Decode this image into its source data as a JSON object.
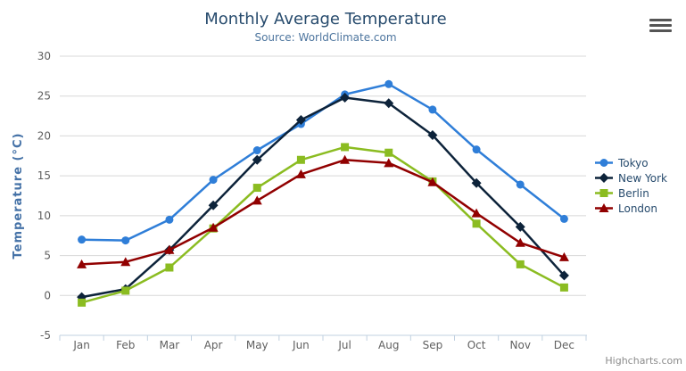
{
  "chart_data": {
    "type": "line",
    "title": "Monthly Average Temperature",
    "subtitle": "Source: WorldClimate.com",
    "categories": [
      "Jan",
      "Feb",
      "Mar",
      "Apr",
      "May",
      "Jun",
      "Jul",
      "Aug",
      "Sep",
      "Oct",
      "Nov",
      "Dec"
    ],
    "series": [
      {
        "name": "Tokyo",
        "color": "#2f7ed8",
        "marker": "circle",
        "values": [
          7.0,
          6.9,
          9.5,
          14.5,
          18.2,
          21.5,
          25.2,
          26.5,
          23.3,
          18.3,
          13.9,
          9.6
        ]
      },
      {
        "name": "New York",
        "color": "#0d233a",
        "marker": "diamond",
        "values": [
          -0.2,
          0.8,
          5.7,
          11.3,
          17.0,
          22.0,
          24.8,
          24.1,
          20.1,
          14.1,
          8.6,
          2.5
        ]
      },
      {
        "name": "Berlin",
        "color": "#8bbc21",
        "marker": "square",
        "values": [
          -0.9,
          0.6,
          3.5,
          8.4,
          13.5,
          17.0,
          18.6,
          17.9,
          14.3,
          9.0,
          3.9,
          1.0
        ]
      },
      {
        "name": "London",
        "color": "#910000",
        "marker": "triangle",
        "values": [
          3.9,
          4.2,
          5.7,
          8.5,
          11.9,
          15.2,
          17.0,
          16.6,
          14.2,
          10.3,
          6.6,
          4.8
        ]
      }
    ],
    "xlabel": "",
    "ylabel": "Temperature (°C)",
    "ylim": [
      -5,
      30
    ],
    "y_ticks": [
      -5,
      0,
      5,
      10,
      15,
      20,
      25,
      30
    ],
    "grid": true,
    "legend_position": "right",
    "style": {
      "grid_color": "#d8d8d8",
      "axis_line_color": "#c0d0e0",
      "axis_label_color": "#606060",
      "axis_title_color": "#4572a7",
      "title_color": "#274b6d",
      "subtitle_color": "#4d759e",
      "legend_text_color": "#274b6d",
      "credits_color": "#8b8b8b"
    }
  },
  "icons": {
    "export_menu_icon": "hamburger-icon"
  },
  "credits": {
    "label": "Highcharts.com"
  }
}
